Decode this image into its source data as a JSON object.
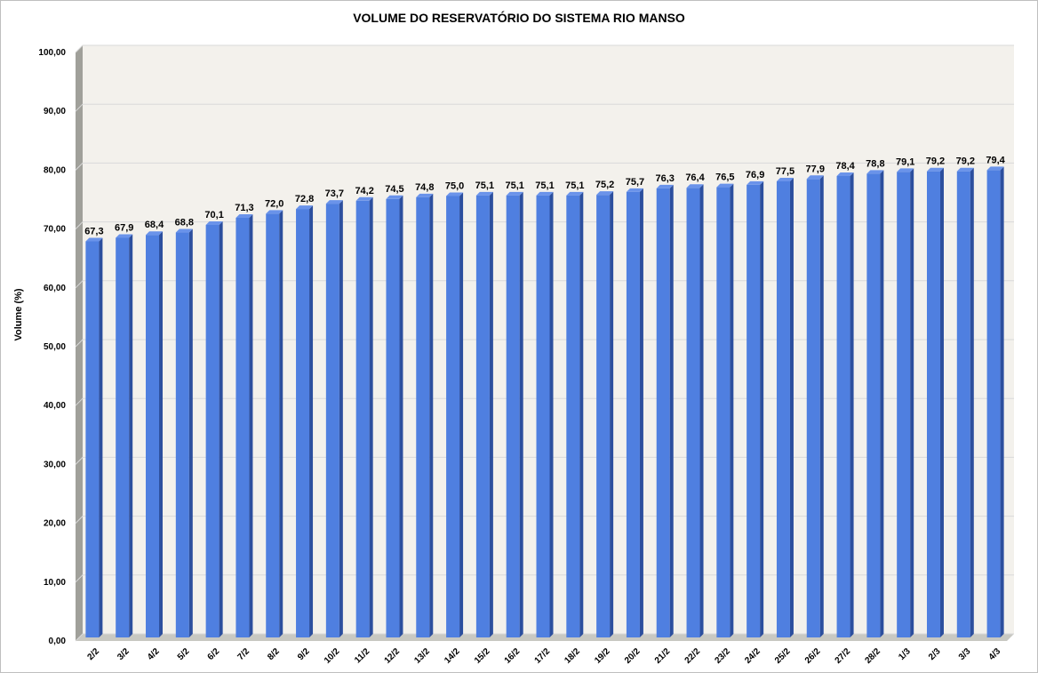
{
  "chart_data": {
    "type": "bar",
    "title": "VOLUME DO RESERVATÓRIO DO SISTEMA RIO MANSO",
    "xlabel": "",
    "ylabel": "Volume (%)",
    "ylim": [
      0,
      100
    ],
    "yticks": [
      "0,00",
      "10,00",
      "20,00",
      "30,00",
      "40,00",
      "50,00",
      "60,00",
      "70,00",
      "80,00",
      "90,00",
      "100,00"
    ],
    "grid": true,
    "legend": "none",
    "colors": {
      "bar": "#4f7fe0",
      "bar_side": "#2c4f9e",
      "bar_top": "#6a93ea",
      "plot_back": "#f3f1ec",
      "wall": "#a0a09a",
      "floor": "#c8c8c2",
      "grid": "#d9d9d9"
    },
    "categories": [
      "2/2",
      "3/2",
      "4/2",
      "5/2",
      "6/2",
      "7/2",
      "8/2",
      "9/2",
      "10/2",
      "11/2",
      "12/2",
      "13/2",
      "14/2",
      "15/2",
      "16/2",
      "17/2",
      "18/2",
      "19/2",
      "20/2",
      "21/2",
      "22/2",
      "23/2",
      "24/2",
      "25/2",
      "26/2",
      "27/2",
      "28/2",
      "1/3",
      "2/3",
      "3/3",
      "4/3"
    ],
    "values": [
      67.3,
      67.9,
      68.4,
      68.8,
      70.1,
      71.3,
      72.0,
      72.8,
      73.7,
      74.2,
      74.5,
      74.8,
      75.0,
      75.1,
      75.1,
      75.1,
      75.1,
      75.2,
      75.7,
      76.3,
      76.4,
      76.5,
      76.9,
      77.5,
      77.9,
      78.4,
      78.8,
      79.1,
      79.2,
      79.2,
      79.4
    ],
    "data_labels": [
      "67,3",
      "67,9",
      "68,4",
      "68,8",
      "70,1",
      "71,3",
      "72,0",
      "72,8",
      "73,7",
      "74,2",
      "74,5",
      "74,8",
      "75,0",
      "75,1",
      "75,1",
      "75,1",
      "75,1",
      "75,2",
      "75,7",
      "76,3",
      "76,4",
      "76,5",
      "76,9",
      "77,5",
      "77,9",
      "78,4",
      "78,8",
      "79,1",
      "79,2",
      "79,2",
      "79,4"
    ]
  }
}
